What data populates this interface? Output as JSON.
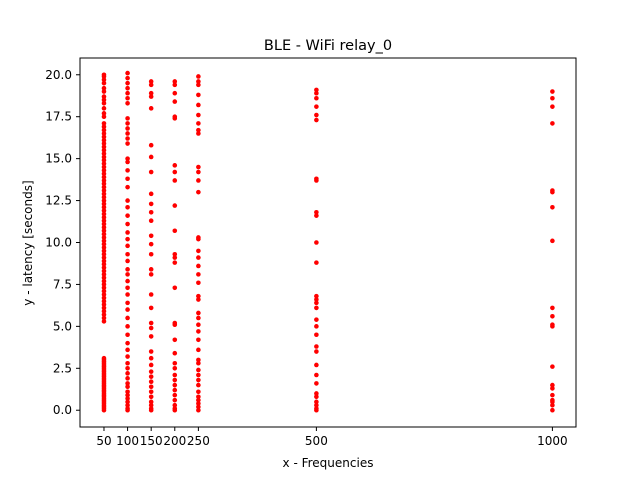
{
  "chart_data": {
    "type": "scatter",
    "title": "BLE - WiFi relay_0",
    "xlabel": "x - Frequencies",
    "ylabel": "y - latency [seconds]",
    "xlim": [
      -0.8,
      1050
    ],
    "ylim": [
      -1.0,
      21.0
    ],
    "xticks": [
      50,
      100,
      150,
      200,
      250,
      500,
      1000
    ],
    "yticks": [
      0.0,
      2.5,
      5.0,
      7.5,
      10.0,
      12.5,
      15.0,
      17.5,
      20.0
    ],
    "ytick_labels": [
      "0.0",
      "2.5",
      "5.0",
      "7.5",
      "10.0",
      "12.5",
      "15.0",
      "17.5",
      "20.0"
    ],
    "grid": false,
    "marker_color": "#ff0000",
    "series": [
      {
        "points": [
          {
            "x": 50,
            "y": [
              0.0,
              0.1,
              0.2,
              0.3,
              0.4,
              0.5,
              0.6,
              0.7,
              0.8,
              0.9,
              1.0,
              1.1,
              1.2,
              1.3,
              1.4,
              1.5,
              1.6,
              1.7,
              1.8,
              1.9,
              2.0,
              2.1,
              2.2,
              2.3,
              2.4,
              2.5,
              2.6,
              2.7,
              2.8,
              2.9,
              3.0,
              3.1,
              5.3,
              5.5,
              5.7,
              5.9,
              6.1,
              6.3,
              6.5,
              6.7,
              6.9,
              7.1,
              7.3,
              7.5,
              7.7,
              7.9,
              8.1,
              8.3,
              8.5,
              8.7,
              8.9,
              9.1,
              9.3,
              9.5,
              9.7,
              9.9,
              10.1,
              10.3,
              10.5,
              10.7,
              10.9,
              11.1,
              11.3,
              11.5,
              11.7,
              11.9,
              12.1,
              12.3,
              12.5,
              12.7,
              12.9,
              13.1,
              13.3,
              13.5,
              13.7,
              13.9,
              14.1,
              14.3,
              14.5,
              14.7,
              14.9,
              15.1,
              15.3,
              15.5,
              15.7,
              15.9,
              16.1,
              16.3,
              16.5,
              16.7,
              16.9,
              17.1,
              17.5,
              17.7,
              18.0,
              18.3,
              18.5,
              18.7,
              19.0,
              19.2,
              19.5,
              19.7,
              19.9,
              20.0
            ]
          },
          {
            "x": 100,
            "y": [
              0.0,
              0.1,
              0.3,
              0.5,
              0.7,
              0.9,
              1.1,
              1.4,
              1.6,
              1.9,
              2.2,
              2.5,
              2.8,
              3.2,
              3.6,
              4.0,
              4.5,
              5.0,
              5.5,
              6.0,
              6.4,
              6.9,
              7.3,
              7.7,
              8.1,
              8.4,
              8.9,
              9.3,
              9.8,
              10.2,
              10.6,
              11.1,
              11.6,
              12.1,
              12.5,
              13.3,
              13.8,
              14.3,
              14.8,
              15.0,
              15.9,
              16.2,
              16.5,
              16.8,
              17.1,
              17.4,
              18.3,
              18.6,
              18.9,
              19.2,
              19.5,
              19.8,
              20.1
            ]
          },
          {
            "x": 150,
            "y": [
              0.0,
              0.1,
              0.3,
              0.5,
              0.8,
              1.1,
              1.4,
              1.7,
              2.0,
              2.3,
              2.7,
              3.1,
              3.5,
              4.4,
              4.9,
              5.2,
              6.1,
              6.9,
              8.1,
              8.4,
              9.3,
              9.9,
              10.4,
              11.3,
              11.8,
              12.3,
              12.9,
              14.2,
              15.1,
              15.8,
              18.0,
              18.7,
              18.9,
              19.4,
              19.6
            ]
          },
          {
            "x": 200,
            "y": [
              0.0,
              0.1,
              0.3,
              0.6,
              0.9,
              1.2,
              1.5,
              1.8,
              2.1,
              2.5,
              2.8,
              3.4,
              4.2,
              5.1,
              5.2,
              7.3,
              8.8,
              9.1,
              9.3,
              10.7,
              12.2,
              13.7,
              14.2,
              14.6,
              17.4,
              17.5,
              18.4,
              18.9,
              19.4,
              19.6
            ]
          },
          {
            "x": 250,
            "y": [
              0.0,
              0.2,
              0.4,
              0.6,
              0.8,
              1.1,
              1.5,
              1.8,
              2.1,
              2.4,
              2.8,
              3.0,
              3.6,
              4.2,
              4.7,
              5.1,
              5.5,
              5.8,
              6.6,
              6.8,
              7.6,
              8.1,
              8.6,
              9.1,
              9.5,
              10.2,
              10.3,
              13.0,
              13.7,
              14.2,
              14.5,
              16.5,
              16.7,
              17.1,
              17.6,
              18.2,
              18.8,
              19.4,
              19.6,
              19.9
            ]
          },
          {
            "x": 500,
            "y": [
              0.0,
              0.1,
              0.3,
              0.5,
              0.8,
              1.0,
              1.6,
              2.1,
              2.7,
              3.5,
              3.8,
              4.5,
              5.0,
              5.4,
              6.1,
              6.4,
              6.6,
              6.8,
              8.8,
              10.0,
              11.6,
              11.8,
              13.7,
              13.8,
              17.3,
              17.6,
              18.1,
              18.6,
              18.9,
              19.1
            ]
          },
          {
            "x": 1000,
            "y": [
              0.0,
              0.3,
              0.5,
              0.6,
              0.9,
              1.3,
              1.5,
              2.6,
              5.0,
              5.1,
              5.6,
              6.1,
              10.1,
              12.1,
              13.0,
              13.1,
              17.1,
              18.1,
              18.6,
              19.0
            ]
          }
        ]
      }
    ]
  }
}
